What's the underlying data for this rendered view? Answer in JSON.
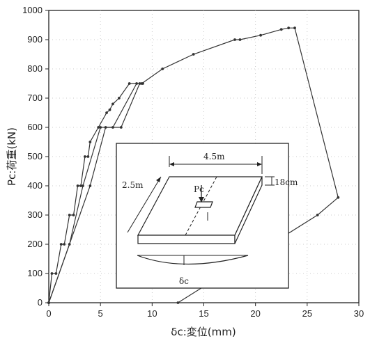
{
  "chart_data": {
    "type": "line",
    "xlabel": "δc:変位(mm)",
    "ylabel": "Pc:荷重(kN)",
    "xlim": [
      0,
      30
    ],
    "ylim": [
      0,
      1000
    ],
    "xticks": [
      0,
      5,
      10,
      15,
      20,
      25,
      30
    ],
    "yticks": [
      0,
      100,
      200,
      300,
      400,
      500,
      600,
      700,
      800,
      900,
      1000
    ],
    "grid": true,
    "series": [
      {
        "values": [
          [
            0,
            0
          ],
          [
            0.3,
            100
          ],
          [
            0.7,
            100
          ],
          [
            1.2,
            200
          ],
          [
            1.5,
            200
          ],
          [
            2.0,
            300
          ],
          [
            2.4,
            300
          ],
          [
            2.8,
            400
          ],
          [
            3.1,
            400
          ],
          [
            3.5,
            500
          ],
          [
            3.8,
            500
          ],
          [
            4.0,
            550
          ],
          [
            4.8,
            600
          ],
          [
            5.6,
            650
          ],
          [
            5.9,
            660
          ],
          [
            6.2,
            680
          ],
          [
            6.8,
            700
          ],
          [
            7.8,
            750
          ],
          [
            9.0,
            750
          ],
          [
            11.0,
            800
          ],
          [
            14.0,
            850
          ],
          [
            18.0,
            900
          ],
          [
            18.5,
            900
          ],
          [
            20.5,
            915
          ],
          [
            22.5,
            935
          ],
          [
            23.2,
            940
          ],
          [
            23.8,
            940
          ],
          [
            28.0,
            360
          ],
          [
            26.0,
            300
          ],
          [
            12.5,
            0
          ]
        ]
      },
      {
        "values": [
          [
            0,
            0
          ],
          [
            2.0,
            200
          ],
          [
            3.3,
            400
          ],
          [
            5.0,
            600
          ],
          [
            6.2,
            600
          ],
          [
            8.5,
            750
          ]
        ]
      },
      {
        "values": [
          [
            0,
            0
          ],
          [
            4.0,
            400
          ],
          [
            5.5,
            600
          ],
          [
            7.0,
            600
          ],
          [
            8.8,
            750
          ],
          [
            9.1,
            750
          ]
        ]
      }
    ],
    "inset": {
      "width_label": "4.5m",
      "depth_label": "2.5m",
      "thickness_label": "18cm",
      "load_label": "Pc",
      "deflection_label": "δc"
    }
  }
}
